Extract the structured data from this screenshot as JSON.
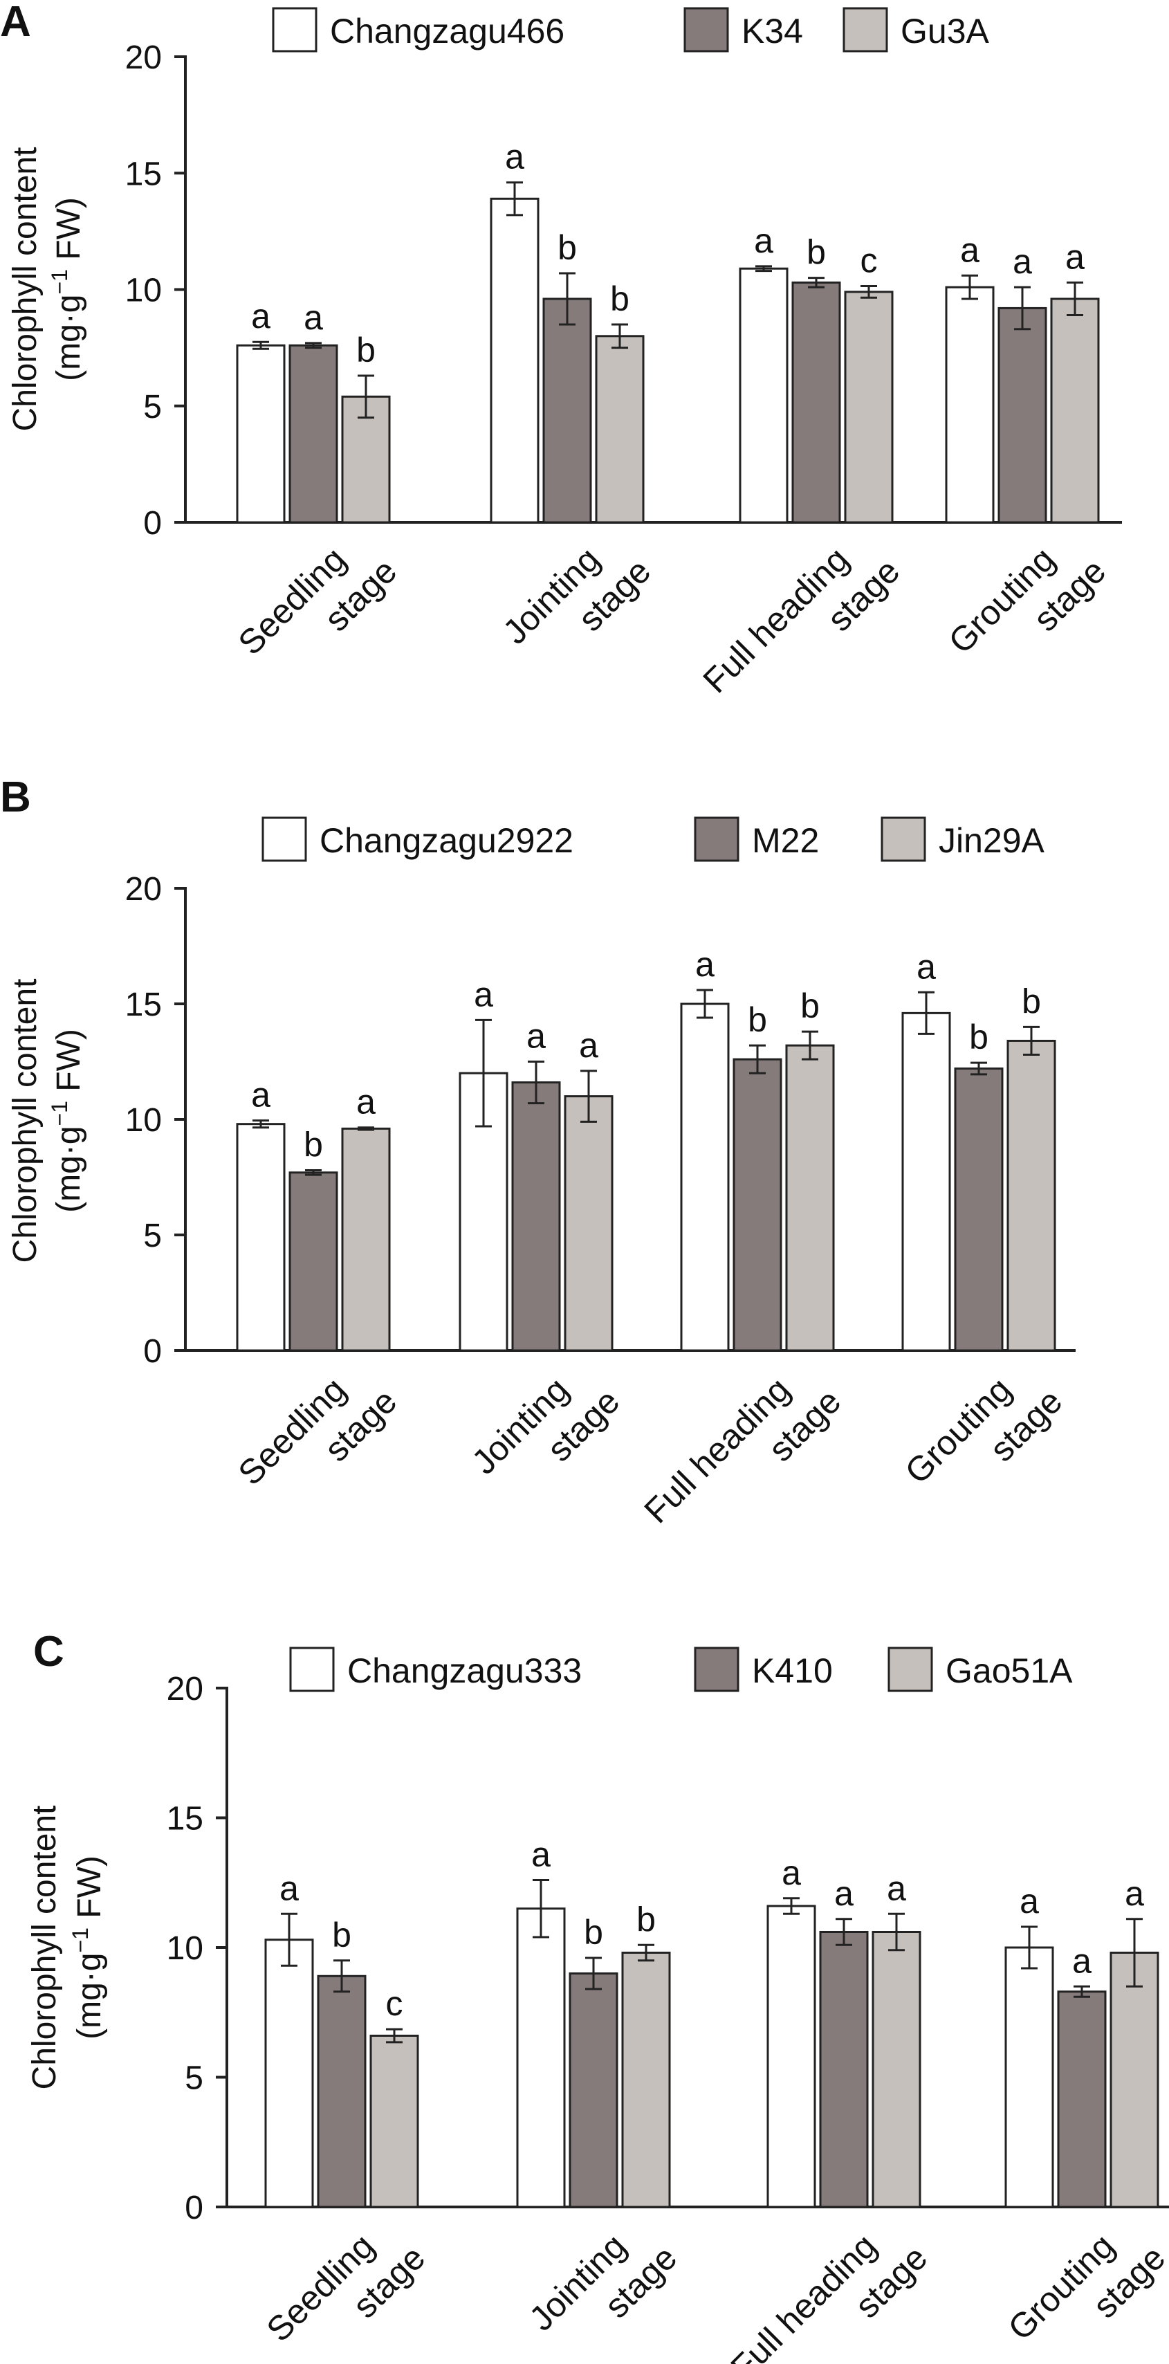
{
  "chart_data": [
    {
      "panel": "A",
      "type": "bar",
      "ylabel_line1": "Chlorophyll content",
      "ylabel_line2_prefix": "(mg·g",
      "ylabel_line2_sup": "−1",
      "ylabel_line2_suffix": " FW)",
      "ylim": [
        0,
        20
      ],
      "yticks": [
        "0",
        "5",
        "10",
        "15",
        "20"
      ],
      "categories": [
        {
          "line1": "Seedling",
          "line2": "stage"
        },
        {
          "line1": "Jointing",
          "line2": "stage"
        },
        {
          "line1": "Full heading",
          "line2": "stage"
        },
        {
          "line1": "Grouting",
          "line2": "stage"
        }
      ],
      "series": [
        {
          "name": "Changzagu466",
          "color": "#ffffff",
          "values": [
            7.6,
            13.9,
            10.9,
            10.1
          ],
          "errors": [
            0.15,
            0.7,
            0.1,
            0.5
          ],
          "labels": [
            "a",
            "a",
            "a",
            "a"
          ]
        },
        {
          "name": "K34",
          "color": "#857b7b",
          "values": [
            7.6,
            9.6,
            10.3,
            9.2
          ],
          "errors": [
            0.1,
            1.1,
            0.2,
            0.9
          ],
          "labels": [
            "a",
            "b",
            "b",
            "a"
          ]
        },
        {
          "name": "Gu3A",
          "color": "#c6c0bc",
          "values": [
            5.4,
            8.0,
            9.9,
            9.6
          ],
          "errors": [
            0.9,
            0.5,
            0.25,
            0.7
          ],
          "labels": [
            "b",
            "b",
            "c",
            "a"
          ]
        }
      ]
    },
    {
      "panel": "B",
      "type": "bar",
      "ylabel_line1": "Chlorophyll content",
      "ylabel_line2_prefix": "(mg·g",
      "ylabel_line2_sup": "−1",
      "ylabel_line2_suffix": " FW)",
      "ylim": [
        0,
        20
      ],
      "yticks": [
        "0",
        "5",
        "10",
        "15",
        "20"
      ],
      "categories": [
        {
          "line1": "Seedling",
          "line2": "stage"
        },
        {
          "line1": "Jointing",
          "line2": "stage"
        },
        {
          "line1": "Full heading",
          "line2": "stage"
        },
        {
          "line1": "Grouting",
          "line2": "stage"
        }
      ],
      "series": [
        {
          "name": "Changzagu2922",
          "color": "#ffffff",
          "values": [
            9.8,
            12.0,
            15.0,
            14.6
          ],
          "errors": [
            0.15,
            2.3,
            0.6,
            0.9
          ],
          "labels": [
            "a",
            "a",
            "a",
            "a"
          ]
        },
        {
          "name": "M22",
          "color": "#857b7b",
          "values": [
            7.7,
            11.6,
            12.6,
            12.2
          ],
          "errors": [
            0.1,
            0.9,
            0.6,
            0.25
          ],
          "labels": [
            "b",
            "a",
            "b",
            "b"
          ]
        },
        {
          "name": "Jin29A",
          "color": "#c6c0bc",
          "values": [
            9.6,
            11.0,
            13.2,
            13.4
          ],
          "errors": [
            0.05,
            1.1,
            0.6,
            0.6
          ],
          "labels": [
            "a",
            "a",
            "b",
            "b"
          ]
        }
      ]
    },
    {
      "panel": "C",
      "type": "bar",
      "ylabel_line1": "Chlorophyll content",
      "ylabel_line2_prefix": "(mg·g",
      "ylabel_line2_sup": "−1",
      "ylabel_line2_suffix": " FW)",
      "ylim": [
        0,
        20
      ],
      "yticks": [
        "0",
        "5",
        "10",
        "15",
        "20"
      ],
      "categories": [
        {
          "line1": "Seedling",
          "line2": "stage"
        },
        {
          "line1": "Jointing",
          "line2": "stage"
        },
        {
          "line1": "Full heading",
          "line2": "stage"
        },
        {
          "line1": "Grouting",
          "line2": "stage"
        }
      ],
      "series": [
        {
          "name": "Changzagu333",
          "color": "#ffffff",
          "values": [
            10.3,
            11.5,
            11.6,
            10.0
          ],
          "errors": [
            1.0,
            1.1,
            0.3,
            0.8
          ],
          "labels": [
            "a",
            "a",
            "a",
            "a"
          ]
        },
        {
          "name": "K410",
          "color": "#857b7b",
          "values": [
            8.9,
            9.0,
            10.6,
            8.3
          ],
          "errors": [
            0.6,
            0.6,
            0.5,
            0.2
          ],
          "labels": [
            "b",
            "b",
            "a",
            "a"
          ]
        },
        {
          "name": "Gao51A",
          "color": "#c6c0bc",
          "values": [
            6.6,
            9.8,
            10.6,
            9.8
          ],
          "errors": [
            0.25,
            0.3,
            0.7,
            1.3
          ],
          "labels": [
            "c",
            "b",
            "a",
            "a"
          ]
        }
      ]
    }
  ]
}
